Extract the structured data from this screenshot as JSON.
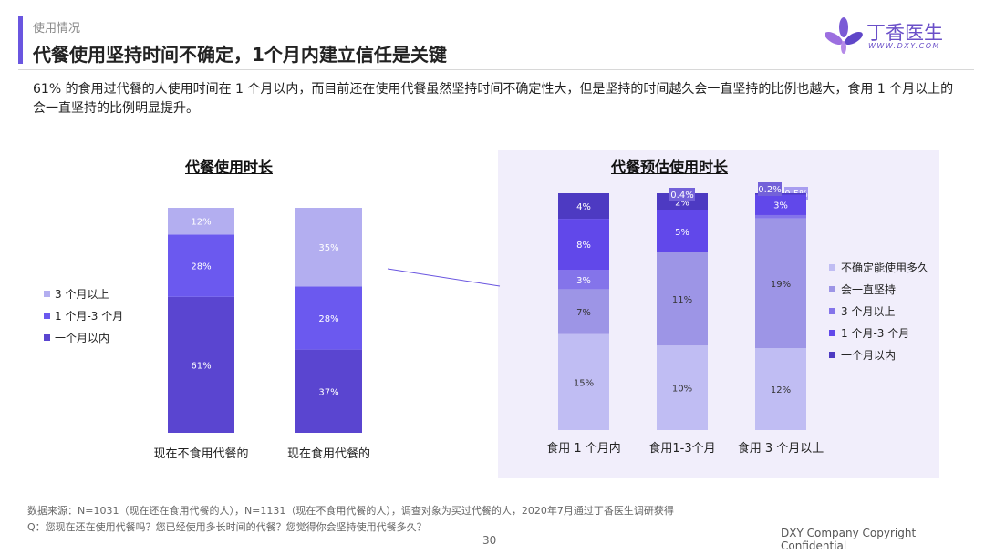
{
  "header": {
    "section": "使用情况",
    "title": "代餐使用坚持时间不确定，1个月内建立信任是关键",
    "logo_text": "丁香医生",
    "logo_sub": "WWW.DXY.COM"
  },
  "intro": "61% 的食用过代餐的人使用时间在 1 个月以内，而目前还在使用代餐虽然坚持时间不确定性大，但是坚持的时间越久会一直坚持的比例也越大，食用 1 个月以上的会一直坚持的比例明显提升。",
  "colors": {
    "accent": "#6a56e0",
    "s_3m_plus": "#b3aef0",
    "s_1_3m": "#6b59ef",
    "s_within_1m": "#5a45d0",
    "s_uncertain": "#c0bdf3",
    "s_persist": "#9d95e6",
    "s_r_3m_plus": "#8474ea",
    "s_r_1_3m": "#6148ea",
    "s_r_within_1m": "#4d3ac2"
  },
  "chart_data": [
    {
      "type": "bar",
      "stacked": true,
      "title": "代餐使用时长",
      "categories": [
        "现在不食用代餐的",
        "现在食用代餐的"
      ],
      "series": [
        {
          "name": "一个月以内",
          "values": [
            61,
            37
          ],
          "labels": [
            "61%",
            "37%"
          ]
        },
        {
          "name": "1 个月-3 个月",
          "values": [
            28,
            28
          ],
          "labels": [
            "28%",
            "28%"
          ]
        },
        {
          "name": "3 个月以上",
          "values": [
            12,
            35
          ],
          "labels": [
            "12%",
            "35%"
          ]
        }
      ],
      "legend_order": [
        "3 个月以上",
        "1 个月-3 个月",
        "一个月以内"
      ],
      "legend_position": "left"
    },
    {
      "type": "bar",
      "stacked": true,
      "title": "代餐预估使用时长",
      "categories": [
        "食用 1 个月内",
        "食用1-3个月",
        "食用 3 个月以上"
      ],
      "series": [
        {
          "name": "不确定能使用多久",
          "values": [
            15,
            10,
            12
          ],
          "labels": [
            "15%",
            "10%",
            "12%"
          ]
        },
        {
          "name": "会一直坚持",
          "values": [
            7,
            11,
            19
          ],
          "labels": [
            "7%",
            "11%",
            "19%"
          ]
        },
        {
          "name": "3 个月以上",
          "values": [
            3,
            0,
            0.5
          ],
          "labels": [
            "3%",
            "",
            "0.5%"
          ]
        },
        {
          "name": "1 个月-3 个月",
          "values": [
            8,
            5,
            3
          ],
          "labels": [
            "8%",
            "5%",
            "3%"
          ]
        },
        {
          "name": "一个月以内",
          "values": [
            4,
            2,
            0.2
          ],
          "labels": [
            "4%",
            "2%",
            "0.2%"
          ]
        }
      ],
      "extra_label": {
        "category": "食用1-3个月",
        "label": "0.4%"
      },
      "legend_order": [
        "不确定能使用多久",
        "会一直坚持",
        "3 个月以上",
        "1 个月-3 个月",
        "一个月以内"
      ],
      "legend_position": "right"
    }
  ],
  "footer": {
    "source": "数据来源：N=1031（现在还在食用代餐的人），N=1131（现在不食用代餐的人），调查对象为买过代餐的人，2020年7月通过丁香医生调研获得",
    "question": "Q：您现在还在使用代餐吗？您已经使用多长时间的代餐？您觉得你会坚持使用代餐多久？",
    "page": "30",
    "copyright": "DXY Company Copyright Confidential"
  }
}
